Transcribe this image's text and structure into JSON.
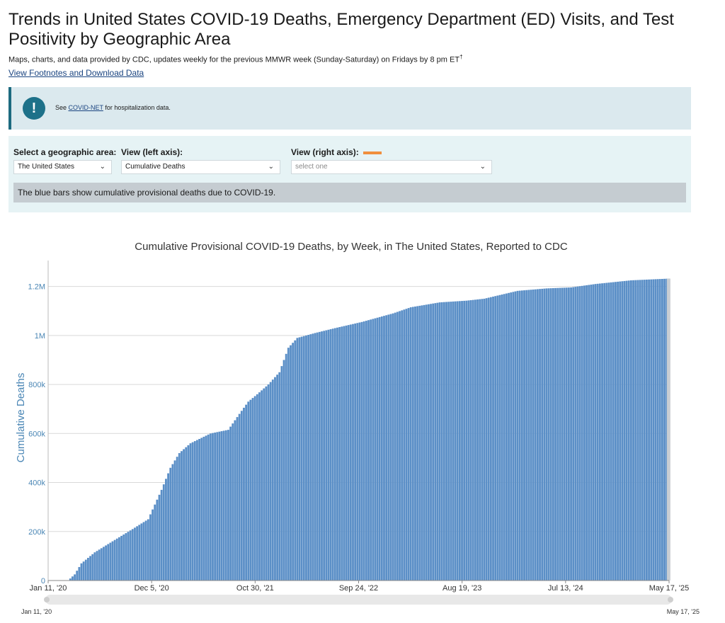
{
  "page": {
    "title": "Trends in United States COVID-19 Deaths, Emergency Department (ED) Visits, and Test Positivity by Geographic Area",
    "subtitle": "Maps, charts, and data provided by CDC, updates weekly for the previous MMWR week (Sunday-Saturday) on Fridays by 8 pm ET",
    "subtitle_mark": "†",
    "footnotes_link": "View Footnotes and Download Data"
  },
  "alert": {
    "icon": "exclamation-icon",
    "prefix": "See ",
    "link": "COVID-NET",
    "suffix": " for hospitalization data."
  },
  "controls": {
    "geo_label": "Select a geographic area:",
    "geo_value": "The United States",
    "left_label": "View (left axis):",
    "left_value": "Cumulative Deaths",
    "right_label": "View (right axis):",
    "right_placeholder": "select one",
    "right_color": "#f08f3e",
    "description": "The blue bars show cumulative provisional deaths due to COVID-19."
  },
  "colors": {
    "bar": "#5b8fc7",
    "axis_title": "#4a86b5",
    "alert_icon": "#1d7189"
  },
  "chart_data": {
    "type": "bar",
    "title": "Cumulative Provisional COVID-19 Deaths, by Week, in The United States, Reported to CDC",
    "ylabel": "Cumulative Deaths",
    "ylim": [
      0,
      1300000
    ],
    "yticks": [
      0,
      200000,
      400000,
      600000,
      800000,
      1000000,
      1200000
    ],
    "ytick_labels": [
      "0",
      "200k",
      "400k",
      "600k",
      "800k",
      "1M",
      "1.2M"
    ],
    "x_start": "2020-01-11",
    "x_end": "2025-05-17",
    "xtick_labels": [
      "Jan 11, '20",
      "Dec 5, '20",
      "Oct 30, '21",
      "Sep 24, '22",
      "Aug 19, '23",
      "Jul 13, '24",
      "May 17, '25"
    ],
    "navigator_labels": [
      "Jan 11, '20",
      "May 17, '25"
    ],
    "grid": true,
    "series": [
      {
        "x": [
          "2020-01-11",
          "2020-03-14",
          "2020-04-04",
          "2020-04-25",
          "2020-06-06",
          "2020-08-01",
          "2020-10-03",
          "2020-11-21",
          "2020-12-05",
          "2021-01-02",
          "2021-01-30",
          "2021-02-27",
          "2021-04-03",
          "2021-06-05",
          "2021-07-31",
          "2021-09-04",
          "2021-10-02",
          "2021-10-30",
          "2021-12-04",
          "2022-01-08",
          "2022-02-05",
          "2022-03-05",
          "2022-04-30",
          "2022-07-02",
          "2022-09-24",
          "2022-12-31",
          "2023-02-25",
          "2023-05-27",
          "2023-08-19",
          "2023-10-14",
          "2024-01-27",
          "2024-04-27",
          "2024-07-13",
          "2024-09-28",
          "2025-01-18",
          "2025-05-17"
        ],
        "values": [
          0,
          0,
          25000,
          70000,
          115000,
          160000,
          210000,
          250000,
          290000,
          370000,
          460000,
          520000,
          560000,
          600000,
          615000,
          680000,
          730000,
          760000,
          800000,
          850000,
          950000,
          990000,
          1010000,
          1030000,
          1055000,
          1090000,
          1115000,
          1135000,
          1142000,
          1150000,
          1182000,
          1192000,
          1196000,
          1210000,
          1225000,
          1232000
        ]
      }
    ]
  }
}
